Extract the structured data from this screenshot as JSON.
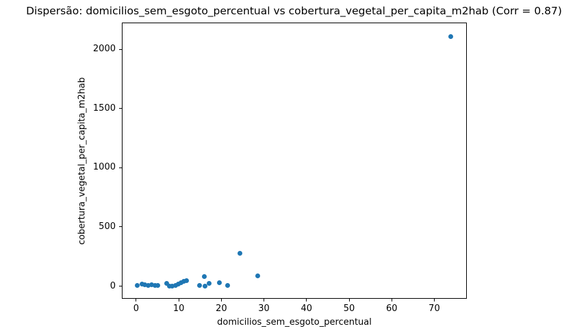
{
  "chart_data": {
    "type": "scatter",
    "title": "Dispersão: domicilios_sem_esgoto_percentual vs cobertura_vegetal_per_capita_m2hab (Corr = 0.87)",
    "xlabel": "domicilios_sem_esgoto_percentual",
    "ylabel": "cobertura_vegetal_per_capita_m2hab",
    "correlation": 0.87,
    "grid": false,
    "legend_position": "none",
    "marker_color": "#1f77b4",
    "marker_diameter_px": 7,
    "xlim": [
      -3.2,
      77.8
    ],
    "ylim": [
      -112,
      2220
    ],
    "x_ticks": [
      0,
      10,
      20,
      30,
      40,
      50,
      60,
      70
    ],
    "y_ticks": [
      0,
      500,
      1000,
      1500,
      2000
    ],
    "points": [
      [
        0.3,
        4
      ],
      [
        1.3,
        20
      ],
      [
        2.1,
        13
      ],
      [
        2.8,
        4
      ],
      [
        3.6,
        13
      ],
      [
        4.4,
        9
      ],
      [
        5.0,
        4
      ],
      [
        7.1,
        25
      ],
      [
        7.8,
        1
      ],
      [
        8.5,
        0
      ],
      [
        9.3,
        4
      ],
      [
        9.9,
        17
      ],
      [
        10.5,
        27
      ],
      [
        11.2,
        41
      ],
      [
        11.9,
        47
      ],
      [
        14.9,
        4
      ],
      [
        16.0,
        80
      ],
      [
        16.2,
        2
      ],
      [
        17.2,
        25
      ],
      [
        19.6,
        27
      ],
      [
        21.5,
        7
      ],
      [
        24.4,
        275
      ],
      [
        28.6,
        88
      ],
      [
        73.9,
        2110
      ]
    ]
  }
}
